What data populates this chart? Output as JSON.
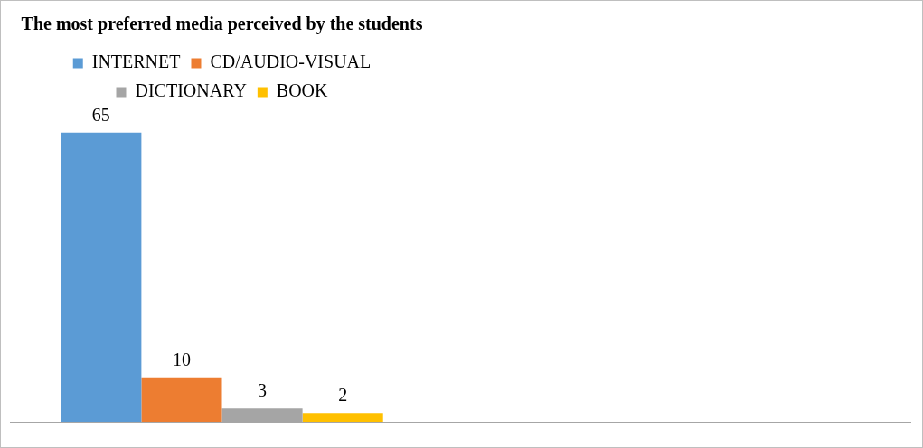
{
  "chart_data": {
    "type": "bar",
    "title": "The most preferred media perceived by the students",
    "categories": [
      null
    ],
    "series": [
      {
        "name": "INTERNET",
        "color": "#5b9bd5",
        "values": [
          65
        ]
      },
      {
        "name": "CD/AUDIO-VISUAL",
        "color": "#ed7d31",
        "values": [
          10
        ]
      },
      {
        "name": "DICTIONARY",
        "color": "#a5a5a5",
        "values": [
          3
        ]
      },
      {
        "name": "BOOK",
        "color": "#ffc000",
        "values": [
          2
        ]
      }
    ],
    "data_labels": true,
    "legend": "top",
    "grid": false,
    "tick_labels": false
  }
}
